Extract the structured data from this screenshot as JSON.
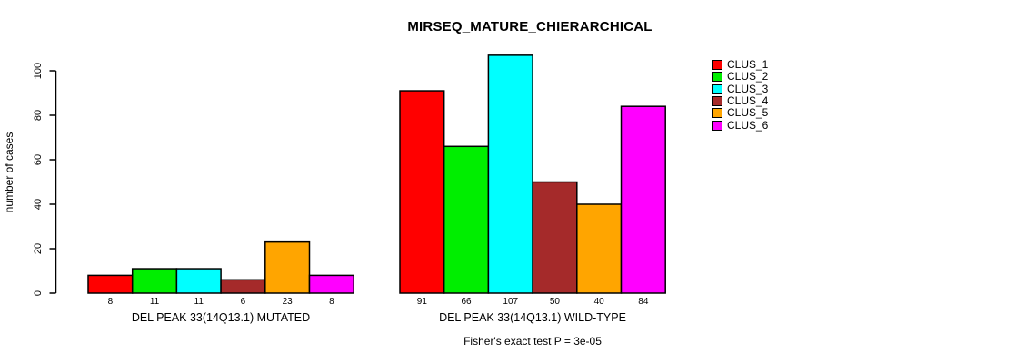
{
  "title": "MIRSEQ_MATURE_CHIERARCHICAL",
  "y_axis": {
    "label": "number of cases",
    "ticks": [
      0,
      20,
      40,
      60,
      80,
      100
    ]
  },
  "footnote": "Fisher's exact test P = 3e-05",
  "chart_data": {
    "type": "bar",
    "categories": [
      "DEL PEAK 33(14Q13.1) MUTATED",
      "DEL PEAK 33(14Q13.1) WILD-TYPE"
    ],
    "series": [
      {
        "name": "CLUS_1",
        "color": "#FF0000",
        "values": [
          8,
          91
        ]
      },
      {
        "name": "CLUS_2",
        "color": "#00EE00",
        "values": [
          11,
          66
        ]
      },
      {
        "name": "CLUS_3",
        "color": "#00FFFF",
        "values": [
          11,
          107
        ]
      },
      {
        "name": "CLUS_4",
        "color": "#A52A2A",
        "values": [
          6,
          50
        ]
      },
      {
        "name": "CLUS_5",
        "color": "#FFA500",
        "values": [
          23,
          40
        ]
      },
      {
        "name": "CLUS_6",
        "color": "#FF00FF",
        "values": [
          8,
          84
        ]
      }
    ],
    "ylabel": "number of cases",
    "ylim": [
      0,
      107
    ],
    "grid": false,
    "legend_position": "right",
    "bar_value_labels_shown": true
  }
}
